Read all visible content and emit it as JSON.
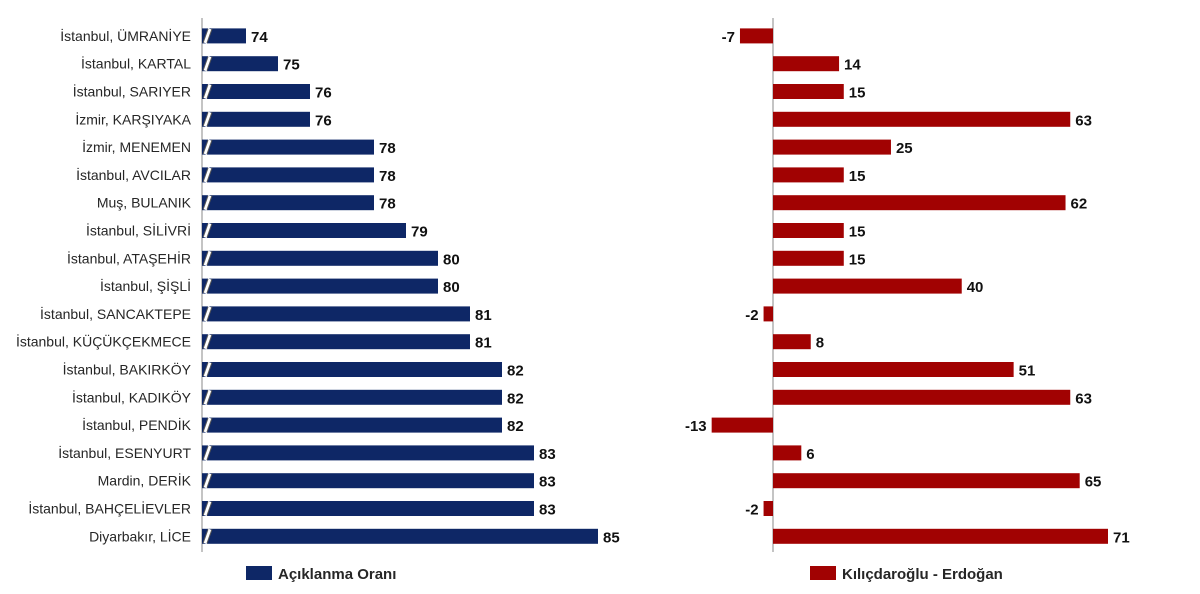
{
  "colors": {
    "left_series": "#0E2766",
    "right_series": "#A10202",
    "axis": "#888888"
  },
  "chart_data": [
    {
      "type": "bar",
      "orientation": "horizontal",
      "axis_break": true,
      "categories": [
        "İstanbul, ÜMRANİYE",
        "İstanbul, KARTAL",
        "İstanbul, SARIYER",
        "İzmir, KARŞIYAKA",
        "İzmir, MENEMEN",
        "İstanbul, AVCILAR",
        "Muş, BULANIK",
        "İstanbul, SİLİVRİ",
        "İstanbul, ATAŞEHİR",
        "İstanbul, ŞİŞLİ",
        "İstanbul, SANCAKTEPE",
        "İstanbul, KÜÇÜKÇEKMECE",
        "İstanbul, BAKIRKÖY",
        "İstanbul, KADIKÖY",
        "İstanbul, PENDİK",
        "İstanbul, ESENYURT",
        "Mardin, DERİK",
        "İstanbul, BAHÇELİEVLER",
        "Diyarbakır, LİCE"
      ],
      "series": [
        {
          "name": "Açıklanma Oranı",
          "values": [
            74,
            75,
            76,
            76,
            78,
            78,
            78,
            79,
            80,
            80,
            81,
            81,
            82,
            82,
            82,
            83,
            83,
            83,
            85
          ]
        }
      ],
      "xlim": [
        73,
        85
      ],
      "legend": "bottom"
    },
    {
      "type": "bar",
      "orientation": "horizontal",
      "series": [
        {
          "name": "Kılıçdaroğlu - Erdoğan",
          "values": [
            -7,
            14,
            15,
            63,
            25,
            15,
            62,
            15,
            15,
            40,
            -2,
            8,
            51,
            63,
            -13,
            6,
            65,
            -2,
            71
          ]
        }
      ],
      "xlim": [
        -13,
        71
      ],
      "legend": "bottom"
    }
  ]
}
